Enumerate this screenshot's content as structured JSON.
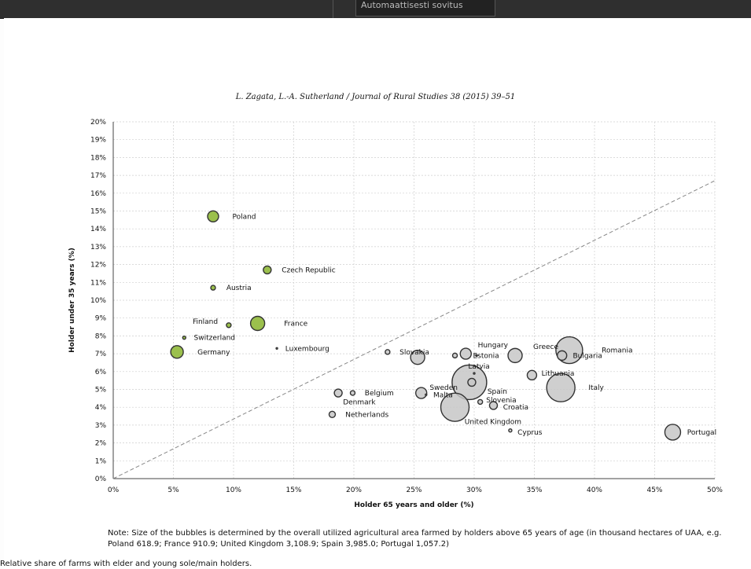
{
  "toolbar": {
    "select_value": "Automaattisesti sovitus"
  },
  "journal_header": "L. Zagata, L.-A. Sutherland / Journal of Rural Studies 38 (2015) 39–51",
  "chart_data": {
    "type": "scatter",
    "xlabel": "Holder 65 years and older (%)",
    "ylabel": "Holder under 35 years (%)",
    "xlim": [
      0,
      50
    ],
    "ylim": [
      0,
      20
    ],
    "x_ticks": [
      "0%",
      "5%",
      "10%",
      "15%",
      "20%",
      "25%",
      "30%",
      "35%",
      "40%",
      "45%",
      "50%"
    ],
    "y_ticks": [
      "0%",
      "1%",
      "2%",
      "3%",
      "4%",
      "5%",
      "6%",
      "7%",
      "8%",
      "9%",
      "10%",
      "11%",
      "12%",
      "13%",
      "14%",
      "15%",
      "16%",
      "17%",
      "18%",
      "19%",
      "20%"
    ],
    "grid": true,
    "diagonal": {
      "from": [
        0,
        0
      ],
      "to": [
        50,
        16.7
      ]
    },
    "colors": {
      "green": "#9bc04d",
      "grey": "#c7c7c7",
      "outline": "#333333",
      "diagonal": "#888888",
      "grid": "#cfcfcf"
    },
    "points": [
      {
        "label": "Poland",
        "x": 8.3,
        "y": 14.7,
        "r": 7,
        "color": "green"
      },
      {
        "label": "Czech Republic",
        "x": 12.8,
        "y": 11.7,
        "r": 5,
        "color": "green"
      },
      {
        "label": "Austria",
        "x": 8.3,
        "y": 10.7,
        "r": 3,
        "color": "green"
      },
      {
        "label": "Finland",
        "x": 9.6,
        "y": 8.6,
        "r": 3,
        "color": "green"
      },
      {
        "label": "France",
        "x": 12.0,
        "y": 8.7,
        "r": 9,
        "color": "green"
      },
      {
        "label": "Switzerland",
        "x": 5.9,
        "y": 7.9,
        "r": 2,
        "color": "green"
      },
      {
        "label": "Germany",
        "x": 5.3,
        "y": 7.1,
        "r": 8,
        "color": "green"
      },
      {
        "label": "Luxembourg",
        "x": 13.6,
        "y": 7.3,
        "r": 1,
        "color": "grey"
      },
      {
        "label": "Slovakia",
        "x": 22.8,
        "y": 7.1,
        "r": 3,
        "color": "grey"
      },
      {
        "label": "",
        "x": 25.3,
        "y": 6.8,
        "r": 9,
        "color": "grey"
      },
      {
        "label": "",
        "x": 28.4,
        "y": 6.9,
        "r": 3,
        "color": "grey"
      },
      {
        "label": "Hungary",
        "x": 29.3,
        "y": 7.0,
        "r": 7,
        "color": "grey"
      },
      {
        "label": "Estonia",
        "x": 30.2,
        "y": 6.9,
        "r": 1,
        "color": "grey"
      },
      {
        "label": "Greece",
        "x": 33.4,
        "y": 6.9,
        "r": 9,
        "color": "grey"
      },
      {
        "label": "Romania",
        "x": 37.9,
        "y": 7.2,
        "r": 17,
        "color": "grey"
      },
      {
        "label": "Bulgaria",
        "x": 37.3,
        "y": 6.9,
        "r": 6,
        "color": "grey"
      },
      {
        "label": "Latvia",
        "x": 30.0,
        "y": 5.9,
        "r": 1,
        "color": "grey"
      },
      {
        "label": "Lithuania",
        "x": 34.8,
        "y": 5.8,
        "r": 6,
        "color": "grey"
      },
      {
        "label": "Spain",
        "x": 29.6,
        "y": 5.4,
        "r": 22,
        "color": "grey"
      },
      {
        "label": "",
        "x": 29.8,
        "y": 5.4,
        "r": 5,
        "color": "grey"
      },
      {
        "label": "Italy",
        "x": 37.2,
        "y": 5.1,
        "r": 18,
        "color": "grey"
      },
      {
        "label": "Sweden",
        "x": 25.6,
        "y": 4.8,
        "r": 7,
        "color": "grey"
      },
      {
        "label": "Malta",
        "x": 26.0,
        "y": 4.7,
        "r": 1,
        "color": "grey"
      },
      {
        "label": "Slovenia",
        "x": 30.5,
        "y": 4.3,
        "r": 3,
        "color": "grey"
      },
      {
        "label": "Croatia",
        "x": 31.6,
        "y": 4.1,
        "r": 5,
        "color": "grey"
      },
      {
        "label": "United Kingdom",
        "x": 28.4,
        "y": 4.0,
        "r": 18,
        "color": "grey"
      },
      {
        "label": "Cyprus",
        "x": 33.0,
        "y": 2.7,
        "r": 2,
        "color": "grey"
      },
      {
        "label": "Portugal",
        "x": 46.5,
        "y": 2.6,
        "r": 10,
        "color": "grey"
      },
      {
        "label": "Belgium",
        "x": 19.9,
        "y": 4.8,
        "r": 3,
        "color": "grey"
      },
      {
        "label": "Denmark",
        "x": 18.7,
        "y": 4.8,
        "r": 5,
        "color": "grey"
      },
      {
        "label": "Netherlands",
        "x": 18.2,
        "y": 3.6,
        "r": 4,
        "color": "grey"
      }
    ],
    "labels": [
      {
        "text": "Poland",
        "x": 9.9,
        "y": 14.7,
        "anchor": "start"
      },
      {
        "text": "Czech Republic",
        "x": 14.0,
        "y": 11.7,
        "anchor": "start"
      },
      {
        "text": "Austria",
        "x": 9.4,
        "y": 10.7,
        "anchor": "start"
      },
      {
        "text": "Finland",
        "x": 8.7,
        "y": 8.8,
        "anchor": "end"
      },
      {
        "text": "France",
        "x": 14.2,
        "y": 8.7,
        "anchor": "start"
      },
      {
        "text": "Switzerland",
        "x": 6.7,
        "y": 7.9,
        "anchor": "start"
      },
      {
        "text": "Germany",
        "x": 7.0,
        "y": 7.1,
        "anchor": "start"
      },
      {
        "text": "Luxembourg",
        "x": 14.3,
        "y": 7.3,
        "anchor": "start"
      },
      {
        "text": "Slovakia",
        "x": 23.8,
        "y": 7.1,
        "anchor": "start"
      },
      {
        "text": "Hungary",
        "x": 30.3,
        "y": 7.5,
        "anchor": "start"
      },
      {
        "text": "Estonia",
        "x": 29.9,
        "y": 6.9,
        "anchor": "start"
      },
      {
        "text": "Greece",
        "x": 34.9,
        "y": 7.4,
        "anchor": "start"
      },
      {
        "text": "Romania",
        "x": 40.6,
        "y": 7.2,
        "anchor": "start"
      },
      {
        "text": "Bulgaria",
        "x": 38.2,
        "y": 6.9,
        "anchor": "start"
      },
      {
        "text": "Latvia",
        "x": 29.5,
        "y": 6.3,
        "anchor": "start"
      },
      {
        "text": "Lithuania",
        "x": 35.6,
        "y": 5.9,
        "anchor": "start"
      },
      {
        "text": "Spain",
        "x": 31.1,
        "y": 4.9,
        "anchor": "start"
      },
      {
        "text": "Italy",
        "x": 39.5,
        "y": 5.1,
        "anchor": "start"
      },
      {
        "text": "Sweden",
        "x": 26.3,
        "y": 5.1,
        "anchor": "start"
      },
      {
        "text": "Malta",
        "x": 26.6,
        "y": 4.7,
        "anchor": "start"
      },
      {
        "text": "Slovenia",
        "x": 31.0,
        "y": 4.4,
        "anchor": "start"
      },
      {
        "text": "Croatia",
        "x": 32.4,
        "y": 4.0,
        "anchor": "start"
      },
      {
        "text": "United Kingdom",
        "x": 29.2,
        "y": 3.2,
        "anchor": "start"
      },
      {
        "text": "Cyprus",
        "x": 33.6,
        "y": 2.6,
        "anchor": "start"
      },
      {
        "text": "Portugal",
        "x": 47.7,
        "y": 2.6,
        "anchor": "start"
      },
      {
        "text": "Belgium",
        "x": 20.9,
        "y": 4.8,
        "anchor": "start"
      },
      {
        "text": "Denmark",
        "x": 19.1,
        "y": 4.3,
        "anchor": "start"
      },
      {
        "text": "Netherlands",
        "x": 19.3,
        "y": 3.6,
        "anchor": "start"
      }
    ]
  },
  "note": "Note: Size of the bubbles is determined by the overall utilized agricultural area farmed by holders above 65 years of age (in thousand hectares of UAA, e.g. Poland 618.9; France 910.9; United Kingdom 3,108.9; Spain 3,985.0; Portugal 1,057.2)",
  "caption": "Relative share of farms with elder and young sole/main holders."
}
